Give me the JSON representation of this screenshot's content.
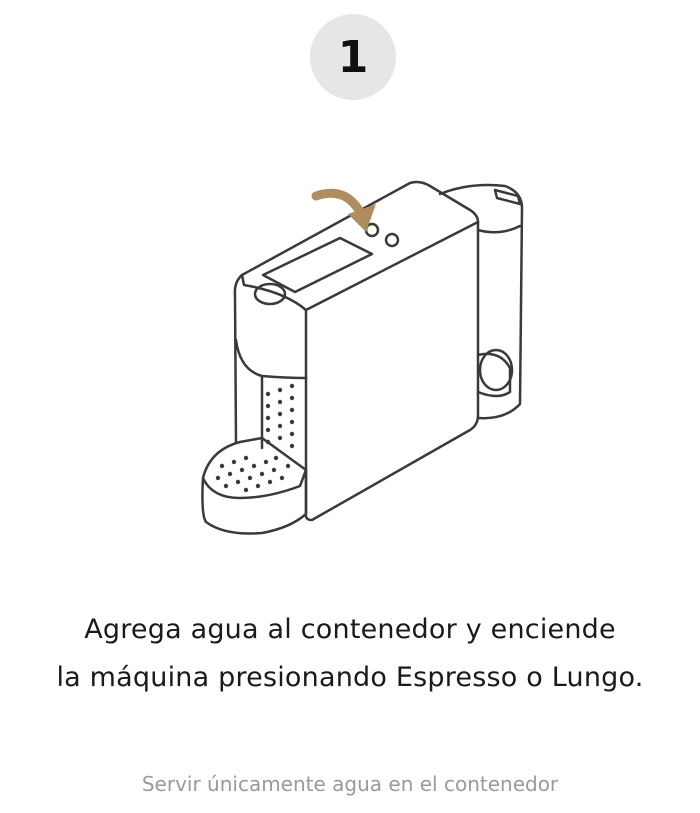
{
  "step": {
    "number": "1"
  },
  "illustration": {
    "subject_icon": "coffee-machine-icon",
    "arrow_icon": "curved-arrow-icon",
    "arrow_color": "#b08d5f",
    "line_color": "#3a3a3a"
  },
  "instruction": {
    "line1": "Agrega agua al contenedor y enciende",
    "line2": "la máquina presionando Espresso o Lungo."
  },
  "note": {
    "text": "Servir únicamente agua en el contenedor"
  }
}
